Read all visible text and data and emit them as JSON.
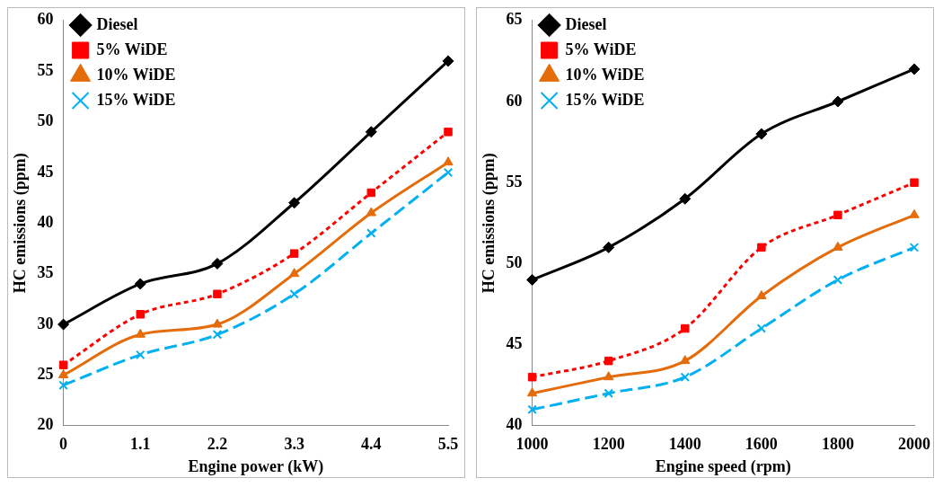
{
  "chart_data": [
    {
      "type": "line",
      "categories": [
        "0",
        "1.1",
        "2.2",
        "3.3",
        "4.4",
        "5.5"
      ],
      "xlabel": "Engine power (kW)",
      "ylabel": "HC emissions (ppm)",
      "ylim": [
        20,
        60
      ],
      "yticks": [
        20,
        25,
        30,
        35,
        40,
        45,
        50,
        55,
        60
      ],
      "grid": false,
      "legend": "top left",
      "series": [
        {
          "name": "Diesel",
          "color": "#000000",
          "marker": "diamond",
          "line_style": "solid",
          "values": [
            30,
            34,
            36,
            42,
            49,
            56
          ]
        },
        {
          "name": "5% WiDE",
          "color": "#ff0000",
          "marker": "square",
          "line_style": "dotted",
          "values": [
            26,
            31,
            33,
            37,
            43,
            49
          ]
        },
        {
          "name": "10% WiDE",
          "color": "#e46c0a",
          "marker": "triangle",
          "line_style": "solid",
          "values": [
            25,
            29,
            30,
            35,
            41,
            46
          ]
        },
        {
          "name": "15% WiDE",
          "color": "#00b0f0",
          "marker": "cross",
          "line_style": "dashed",
          "values": [
            24,
            27,
            29,
            33,
            39,
            45
          ]
        }
      ]
    },
    {
      "type": "line",
      "categories": [
        "1000",
        "1200",
        "1400",
        "1600",
        "1800",
        "2000"
      ],
      "xlabel": "Engine speed (rpm)",
      "ylabel": "HC emissions (ppm)",
      "ylim": [
        40,
        65
      ],
      "yticks": [
        40,
        45,
        50,
        55,
        60,
        65
      ],
      "grid": false,
      "legend": "top left",
      "series": [
        {
          "name": "Diesel",
          "color": "#000000",
          "marker": "diamond",
          "line_style": "solid",
          "values": [
            49,
            51,
            54,
            58,
            60,
            62
          ]
        },
        {
          "name": "5% WiDE",
          "color": "#ff0000",
          "marker": "square",
          "line_style": "dotted",
          "values": [
            43,
            44,
            46,
            51,
            53,
            55
          ]
        },
        {
          "name": "10% WiDE",
          "color": "#e46c0a",
          "marker": "triangle",
          "line_style": "solid",
          "values": [
            42,
            43,
            44,
            48,
            51,
            53
          ]
        },
        {
          "name": "15% WiDE",
          "color": "#00b0f0",
          "marker": "cross",
          "line_style": "dashed",
          "values": [
            41,
            42,
            43,
            46,
            49,
            51
          ]
        }
      ]
    }
  ]
}
